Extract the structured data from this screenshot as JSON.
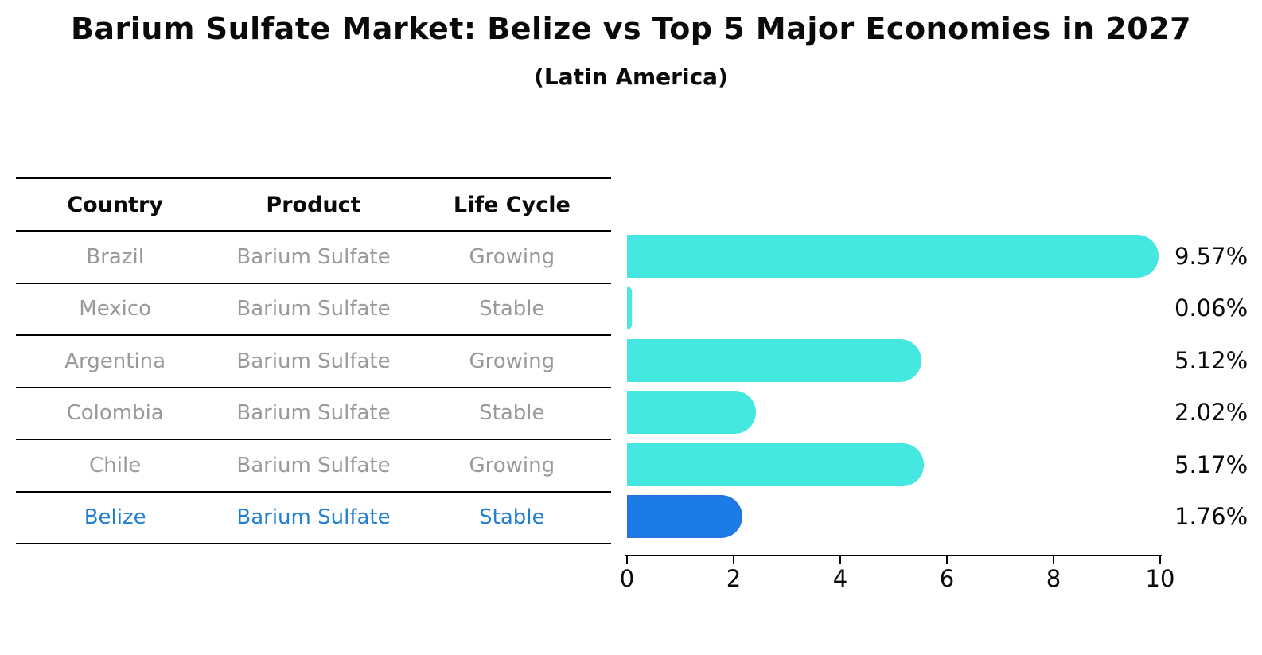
{
  "header": {
    "title": "Barium Sulfate Market: Belize vs Top 5 Major Economies in 2027",
    "subtitle": "(Latin America)"
  },
  "table": {
    "columns": [
      "Country",
      "Product",
      "Life Cycle"
    ],
    "rows": [
      {
        "country": "Brazil",
        "product": "Barium Sulfate",
        "life_cycle": "Growing",
        "highlight": false
      },
      {
        "country": "Mexico",
        "product": "Barium Sulfate",
        "life_cycle": "Stable",
        "highlight": false
      },
      {
        "country": "Argentina",
        "product": "Barium Sulfate",
        "life_cycle": "Growing",
        "highlight": false
      },
      {
        "country": "Colombia",
        "product": "Barium Sulfate",
        "life_cycle": "Stable",
        "highlight": false
      },
      {
        "country": "Chile",
        "product": "Barium Sulfate",
        "life_cycle": "Growing",
        "highlight": false
      },
      {
        "country": "Belize",
        "product": "Barium Sulfate",
        "life_cycle": "Stable",
        "highlight": true
      }
    ]
  },
  "chart_data": {
    "type": "bar",
    "orientation": "horizontal",
    "categories": [
      "Brazil",
      "Mexico",
      "Argentina",
      "Colombia",
      "Chile",
      "Belize"
    ],
    "values": [
      9.57,
      0.06,
      5.12,
      2.02,
      5.17,
      1.76
    ],
    "value_labels": [
      "9.57%",
      "0.06%",
      "5.12%",
      "2.02%",
      "5.17%",
      "1.76%"
    ],
    "x_ticks": [
      0,
      2,
      4,
      6,
      8,
      10
    ],
    "xlim": [
      0,
      10
    ],
    "highlight_index": 5,
    "grid": false,
    "legend": "none",
    "colors": {
      "bar": "#45e8e0",
      "highlight_bar": "#1b7ce8",
      "highlight_border": "#2f6bd8",
      "highlight_text": "#1f7fd4",
      "row_text": "#999999",
      "title_text": "#0a0a0a"
    }
  }
}
